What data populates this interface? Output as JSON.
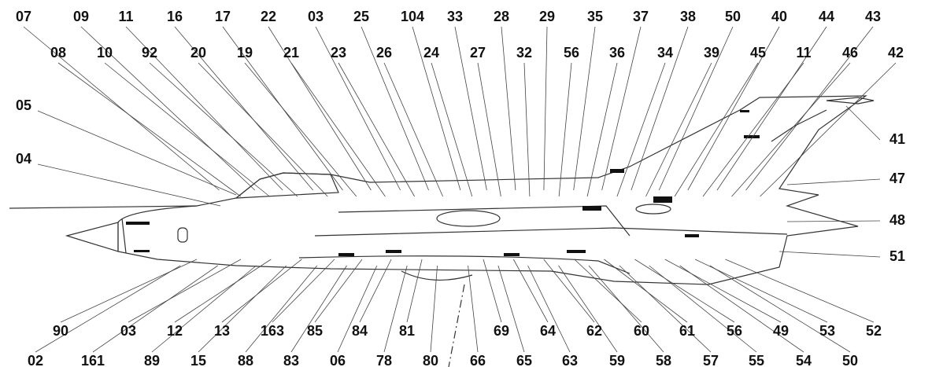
{
  "callouts": {
    "top_row_1": [
      "07",
      "09",
      "11",
      "16",
      "17",
      "22",
      "03",
      "25",
      "104",
      "33",
      "28",
      "29",
      "35",
      "37",
      "38",
      "50",
      "40",
      "44",
      "43"
    ],
    "top_row_2": [
      "08",
      "10",
      "92",
      "20",
      "19",
      "21",
      "23",
      "26",
      "24",
      "27",
      "32",
      "56",
      "36",
      "34",
      "39",
      "45",
      "11",
      "46",
      "42"
    ],
    "left": [
      "05",
      "04"
    ],
    "right": [
      "41",
      "47",
      "48",
      "51"
    ],
    "bottom_row_1": [
      "90",
      "03",
      "12",
      "13",
      "163",
      "85",
      "84",
      "81",
      "69",
      "64",
      "62",
      "60",
      "61",
      "56",
      "49",
      "53",
      "52"
    ],
    "bottom_row_2": [
      "02",
      "161",
      "89",
      "15",
      "88",
      "83",
      "06",
      "78",
      "80",
      "66",
      "65",
      "63",
      "59",
      "58",
      "57",
      "55",
      "54",
      "50"
    ]
  }
}
